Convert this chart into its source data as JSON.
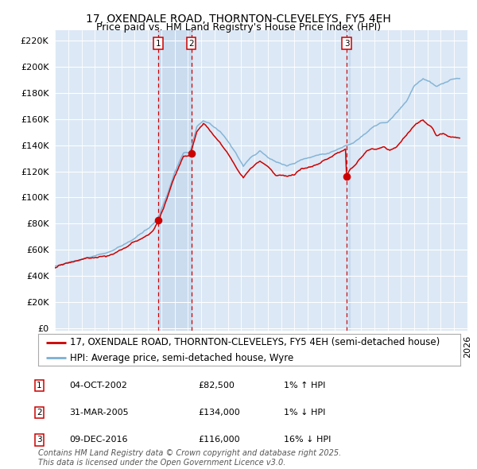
{
  "title": "17, OXENDALE ROAD, THORNTON-CLEVELEYS, FY5 4EH",
  "subtitle": "Price paid vs. HM Land Registry's House Price Index (HPI)",
  "ytick_vals": [
    0,
    20000,
    40000,
    60000,
    80000,
    100000,
    120000,
    140000,
    160000,
    180000,
    200000,
    220000
  ],
  "sale_dates": [
    "2002-10-04",
    "2005-03-31",
    "2016-12-09"
  ],
  "sale_prices": [
    82500,
    134000,
    116000
  ],
  "sale_labels": [
    "1",
    "2",
    "3"
  ],
  "sale_hpi_pcts": [
    "1% ↑ HPI",
    "1% ↓ HPI",
    "16% ↓ HPI"
  ],
  "sale_dates_str": [
    "04-OCT-2002",
    "31-MAR-2005",
    "09-DEC-2016"
  ],
  "sale_prices_str": [
    "£82,500",
    "£134,000",
    "£116,000"
  ],
  "legend_line1": "17, OXENDALE ROAD, THORNTON-CLEVELEYS, FY5 4EH (semi-detached house)",
  "legend_line2": "HPI: Average price, semi-detached house, Wyre",
  "footer": "Contains HM Land Registry data © Crown copyright and database right 2025.\nThis data is licensed under the Open Government Licence v3.0.",
  "line_color_red": "#cc0000",
  "line_color_blue": "#7bafd4",
  "bg_color": "#dce8f5",
  "vline_color": "#cc0000",
  "vband_color": "#c5d8ed",
  "title_fontsize": 10,
  "subtitle_fontsize": 9,
  "tick_fontsize": 8,
  "legend_fontsize": 8.5,
  "footer_fontsize": 7,
  "xstart_year": 1995,
  "xend_year": 2025
}
